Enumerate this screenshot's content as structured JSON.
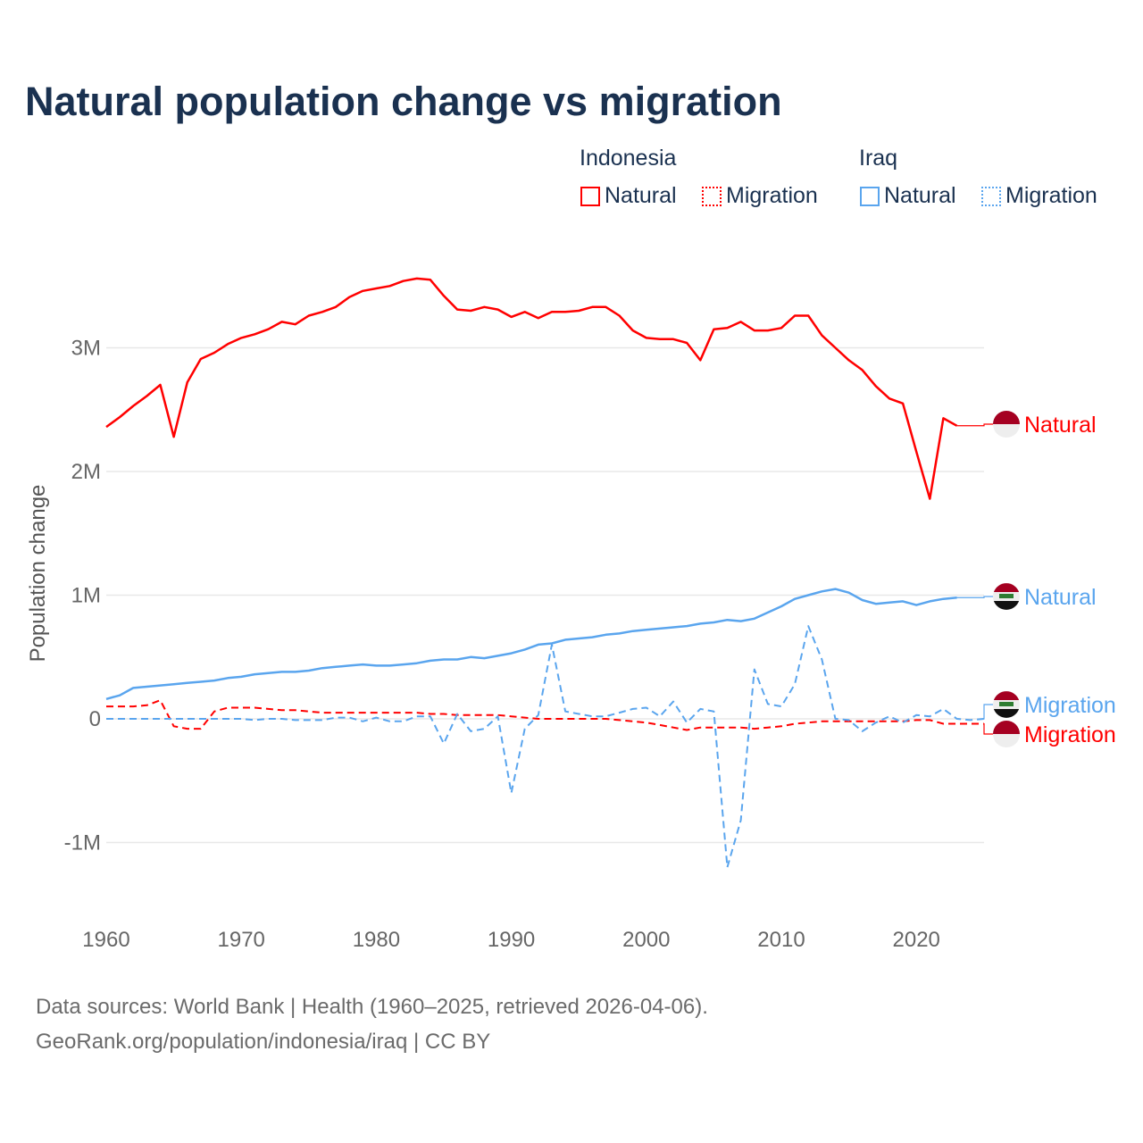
{
  "title": "Natural population change vs migration",
  "legend": {
    "groups": [
      {
        "name": "Indonesia",
        "items": [
          "Natural",
          "Migration"
        ]
      },
      {
        "name": "Iraq",
        "items": [
          "Natural",
          "Migration"
        ]
      }
    ]
  },
  "footer": {
    "line1": "Data sources: World Bank | Health (1960–2025, retrieved 2026-04-06).",
    "line2": "GeoRank.org/population/indonesia/iraq | CC BY"
  },
  "colors": {
    "indonesia": "#ff0000",
    "iraq": "#5aa5ee",
    "title": "#1a3150"
  },
  "chart_data": {
    "type": "line",
    "title": "Natural population change vs migration",
    "xlabel": "",
    "ylabel": "Population change",
    "xlim": [
      1960,
      2025
    ],
    "ylim": [
      -1.3,
      3.8
    ],
    "x_ticks": [
      1960,
      1970,
      1980,
      1990,
      2000,
      2010,
      2020
    ],
    "y_ticks": [
      {
        "v": -1,
        "label": "-1M"
      },
      {
        "v": 0,
        "label": "0"
      },
      {
        "v": 1,
        "label": "1M"
      },
      {
        "v": 2,
        "label": "2M"
      },
      {
        "v": 3,
        "label": "3M"
      }
    ],
    "x_start": 1960,
    "series": [
      {
        "name": "Indonesia Natural",
        "country": "Indonesia",
        "kind": "Natural",
        "color": "#ff0000",
        "dashed": false,
        "end_label": "Natural",
        "values": [
          2.36,
          2.44,
          2.53,
          2.61,
          2.7,
          2.28,
          2.72,
          2.91,
          2.96,
          3.03,
          3.08,
          3.11,
          3.15,
          3.21,
          3.19,
          3.26,
          3.29,
          3.33,
          3.41,
          3.46,
          3.48,
          3.5,
          3.54,
          3.56,
          3.55,
          3.42,
          3.31,
          3.3,
          3.33,
          3.31,
          3.25,
          3.29,
          3.24,
          3.29,
          3.29,
          3.3,
          3.33,
          3.33,
          3.26,
          3.14,
          3.08,
          3.07,
          3.07,
          3.04,
          2.9,
          3.15,
          3.16,
          3.21,
          3.14,
          3.14,
          3.16,
          3.26,
          3.26,
          3.1,
          3.0,
          2.9,
          2.82,
          2.69,
          2.59,
          2.55,
          2.16,
          1.78,
          2.43,
          2.37
        ]
      },
      {
        "name": "Indonesia Migration",
        "country": "Indonesia",
        "kind": "Migration",
        "color": "#ff0000",
        "dashed": true,
        "end_label": "Migration",
        "values": [
          0.1,
          0.1,
          0.1,
          0.11,
          0.15,
          -0.06,
          -0.08,
          -0.08,
          0.06,
          0.09,
          0.09,
          0.09,
          0.08,
          0.07,
          0.07,
          0.06,
          0.05,
          0.05,
          0.05,
          0.05,
          0.05,
          0.05,
          0.05,
          0.05,
          0.04,
          0.04,
          0.03,
          0.03,
          0.03,
          0.03,
          0.02,
          0.01,
          0.0,
          0.0,
          0.0,
          0.0,
          0.0,
          0.0,
          -0.01,
          -0.02,
          -0.03,
          -0.05,
          -0.07,
          -0.09,
          -0.07,
          -0.07,
          -0.07,
          -0.07,
          -0.08,
          -0.07,
          -0.06,
          -0.04,
          -0.03,
          -0.02,
          -0.02,
          -0.02,
          -0.02,
          -0.02,
          -0.02,
          -0.02,
          -0.01,
          -0.01,
          -0.04,
          -0.04,
          -0.04,
          -0.04
        ]
      },
      {
        "name": "Iraq Natural",
        "country": "Iraq",
        "kind": "Natural",
        "color": "#5aa5ee",
        "dashed": false,
        "end_label": "Natural",
        "values": [
          0.16,
          0.19,
          0.25,
          0.26,
          0.27,
          0.28,
          0.29,
          0.3,
          0.31,
          0.33,
          0.34,
          0.36,
          0.37,
          0.38,
          0.38,
          0.39,
          0.41,
          0.42,
          0.43,
          0.44,
          0.43,
          0.43,
          0.44,
          0.45,
          0.47,
          0.48,
          0.48,
          0.5,
          0.49,
          0.51,
          0.53,
          0.56,
          0.6,
          0.61,
          0.64,
          0.65,
          0.66,
          0.68,
          0.69,
          0.71,
          0.72,
          0.73,
          0.74,
          0.75,
          0.77,
          0.78,
          0.8,
          0.79,
          0.81,
          0.86,
          0.91,
          0.97,
          1.0,
          1.03,
          1.05,
          1.02,
          0.96,
          0.93,
          0.94,
          0.95,
          0.92,
          0.95,
          0.97,
          0.98
        ]
      },
      {
        "name": "Iraq Migration",
        "country": "Iraq",
        "kind": "Migration",
        "color": "#5aa5ee",
        "dashed": true,
        "end_label": "Migration",
        "values": [
          0.0,
          0.0,
          0.0,
          0.0,
          0.0,
          0.0,
          0.0,
          0.0,
          0.0,
          0.0,
          0.0,
          -0.01,
          0.0,
          0.0,
          -0.01,
          -0.01,
          -0.01,
          0.01,
          0.01,
          -0.02,
          0.01,
          -0.02,
          -0.02,
          0.02,
          0.02,
          -0.2,
          0.04,
          -0.1,
          -0.08,
          0.02,
          -0.6,
          -0.08,
          0.03,
          0.6,
          0.06,
          0.04,
          0.02,
          0.02,
          0.05,
          0.08,
          0.09,
          0.02,
          0.14,
          -0.03,
          0.08,
          0.06,
          -1.2,
          -0.82,
          0.4,
          0.12,
          0.1,
          0.28,
          0.75,
          0.48,
          0.0,
          -0.01,
          -0.1,
          -0.03,
          0.02,
          -0.03,
          0.03,
          0.02,
          0.08,
          0.0,
          -0.01,
          0.0
        ]
      }
    ]
  }
}
